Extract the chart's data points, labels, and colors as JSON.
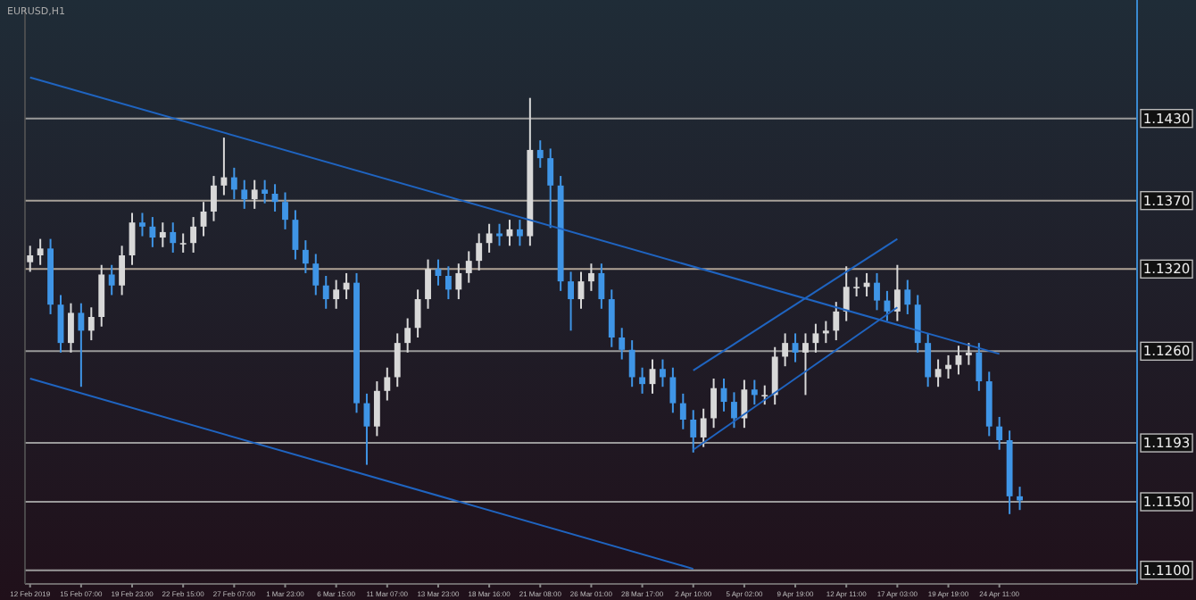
{
  "chart_data": {
    "type": "candlestick",
    "title": "EURUSD,H1",
    "categories": [
      "12 Feb 2019",
      null,
      null,
      null,
      null,
      "15 Feb 07:00",
      null,
      null,
      null,
      null,
      "19 Feb 23:00",
      null,
      null,
      null,
      null,
      "22 Feb 15:00",
      null,
      null,
      null,
      null,
      "27 Feb 07:00",
      null,
      null,
      null,
      null,
      "1 Mar 23:00",
      null,
      null,
      null,
      null,
      "6 Mar 15:00",
      null,
      null,
      null,
      null,
      "11 Mar 07:00",
      null,
      null,
      null,
      null,
      "13 Mar 23:00",
      null,
      null,
      null,
      null,
      "18 Mar 16:00",
      null,
      null,
      null,
      null,
      "21 Mar 08:00",
      null,
      null,
      null,
      null,
      "26 Mar 01:00",
      null,
      null,
      null,
      null,
      "28 Mar 17:00",
      null,
      null,
      null,
      null,
      "2 Apr 10:00",
      null,
      null,
      null,
      null,
      "5 Apr 02:00",
      null,
      null,
      null,
      null,
      "9 Apr 19:00",
      null,
      null,
      null,
      null,
      "12 Apr 11:00",
      null,
      null,
      null,
      null,
      "17 Apr 03:00",
      null,
      null,
      null,
      null,
      "19 Apr 19:00",
      null,
      null,
      null,
      null,
      "24 Apr 11:00",
      null,
      null,
      null,
      null,
      null,
      null,
      null,
      null,
      null,
      null,
      null,
      null,
      null
    ],
    "ohlc": [
      [
        1.1325,
        1.1337,
        1.1318,
        1.133
      ],
      [
        1.133,
        1.1342,
        1.1323,
        1.1335
      ],
      [
        1.1335,
        1.1342,
        1.1287,
        1.1294
      ],
      [
        1.1294,
        1.1301,
        1.1259,
        1.1266
      ],
      [
        1.1266,
        1.1295,
        1.1259,
        1.1288
      ],
      [
        1.1288,
        1.1295,
        1.1234,
        1.1275
      ],
      [
        1.1275,
        1.1292,
        1.1268,
        1.1285
      ],
      [
        1.1285,
        1.1323,
        1.1278,
        1.1316
      ],
      [
        1.1316,
        1.1323,
        1.1301,
        1.1308
      ],
      [
        1.1308,
        1.1337,
        1.1301,
        1.133
      ],
      [
        1.133,
        1.1361,
        1.1323,
        1.1354
      ],
      [
        1.1354,
        1.1361,
        1.1344,
        1.1351
      ],
      [
        1.1351,
        1.1358,
        1.1336,
        1.1343
      ],
      [
        1.1343,
        1.1354,
        1.1336,
        1.1347
      ],
      [
        1.1347,
        1.1354,
        1.1332,
        1.1339
      ],
      [
        1.1339,
        1.1346,
        1.1332,
        1.1339
      ],
      [
        1.1339,
        1.1358,
        1.1332,
        1.1351
      ],
      [
        1.1351,
        1.1369,
        1.1344,
        1.1362
      ],
      [
        1.1362,
        1.1388,
        1.1355,
        1.1381
      ],
      [
        1.1381,
        1.1416,
        1.1374,
        1.1387
      ],
      [
        1.1387,
        1.1394,
        1.1371,
        1.1378
      ],
      [
        1.1378,
        1.1385,
        1.1364,
        1.1371
      ],
      [
        1.1371,
        1.1385,
        1.1364,
        1.1378
      ],
      [
        1.1378,
        1.1385,
        1.1368,
        1.1375
      ],
      [
        1.1375,
        1.1382,
        1.1362,
        1.1369
      ],
      [
        1.1369,
        1.1376,
        1.1349,
        1.1356
      ],
      [
        1.1356,
        1.1363,
        1.1327,
        1.1334
      ],
      [
        1.1334,
        1.1341,
        1.1317,
        1.1324
      ],
      [
        1.1324,
        1.1331,
        1.1301,
        1.1308
      ],
      [
        1.1308,
        1.1315,
        1.1291,
        1.1298
      ],
      [
        1.1298,
        1.1312,
        1.1291,
        1.1305
      ],
      [
        1.1305,
        1.1317,
        1.1298,
        1.131
      ],
      [
        1.131,
        1.1317,
        1.1215,
        1.1222
      ],
      [
        1.1222,
        1.1229,
        1.1177,
        1.1205
      ],
      [
        1.1205,
        1.1238,
        1.1198,
        1.1231
      ],
      [
        1.1231,
        1.1248,
        1.1224,
        1.1241
      ],
      [
        1.1241,
        1.1273,
        1.1234,
        1.1266
      ],
      [
        1.1266,
        1.1284,
        1.1259,
        1.1277
      ],
      [
        1.1277,
        1.1305,
        1.127,
        1.1298
      ],
      [
        1.1298,
        1.1327,
        1.1291,
        1.132
      ],
      [
        1.132,
        1.1327,
        1.1308,
        1.1315
      ],
      [
        1.1315,
        1.1322,
        1.1298,
        1.1305
      ],
      [
        1.1305,
        1.1324,
        1.1298,
        1.1317
      ],
      [
        1.1317,
        1.1333,
        1.131,
        1.1326
      ],
      [
        1.1326,
        1.1346,
        1.1319,
        1.1339
      ],
      [
        1.1339,
        1.1353,
        1.1332,
        1.1346
      ],
      [
        1.1346,
        1.1353,
        1.1337,
        1.1344
      ],
      [
        1.1344,
        1.1356,
        1.1337,
        1.1349
      ],
      [
        1.1349,
        1.1356,
        1.1337,
        1.1344
      ],
      [
        1.1344,
        1.1445,
        1.1337,
        1.1407
      ],
      [
        1.1407,
        1.1414,
        1.1394,
        1.1401
      ],
      [
        1.1401,
        1.1408,
        1.135,
        1.1381
      ],
      [
        1.1381,
        1.1388,
        1.1304,
        1.1311
      ],
      [
        1.1311,
        1.1318,
        1.1275,
        1.1298
      ],
      [
        1.1298,
        1.1318,
        1.1291,
        1.1311
      ],
      [
        1.1311,
        1.1324,
        1.1304,
        1.1317
      ],
      [
        1.1317,
        1.1324,
        1.1291,
        1.1298
      ],
      [
        1.1298,
        1.1305,
        1.1263,
        1.127
      ],
      [
        1.127,
        1.1277,
        1.1254,
        1.1261
      ],
      [
        1.1261,
        1.1268,
        1.1234,
        1.1241
      ],
      [
        1.1241,
        1.1248,
        1.1229,
        1.1236
      ],
      [
        1.1236,
        1.1254,
        1.1229,
        1.1247
      ],
      [
        1.1247,
        1.1254,
        1.1234,
        1.1241
      ],
      [
        1.1241,
        1.1248,
        1.1215,
        1.1222
      ],
      [
        1.1222,
        1.1229,
        1.1203,
        1.121
      ],
      [
        1.121,
        1.1217,
        1.1186,
        1.1197
      ],
      [
        1.1197,
        1.1218,
        1.119,
        1.1211
      ],
      [
        1.1211,
        1.124,
        1.1204,
        1.1233
      ],
      [
        1.1233,
        1.124,
        1.1216,
        1.1223
      ],
      [
        1.1223,
        1.123,
        1.1204,
        1.1211
      ],
      [
        1.1211,
        1.1239,
        1.1204,
        1.1232
      ],
      [
        1.1232,
        1.1239,
        1.1221,
        1.1228
      ],
      [
        1.1228,
        1.1235,
        1.1221,
        1.1228
      ],
      [
        1.1228,
        1.1263,
        1.1221,
        1.1256
      ],
      [
        1.1256,
        1.1273,
        1.1249,
        1.1266
      ],
      [
        1.1266,
        1.1273,
        1.1252,
        1.1259
      ],
      [
        1.1259,
        1.1273,
        1.1228,
        1.1266
      ],
      [
        1.1266,
        1.128,
        1.1259,
        1.1273
      ],
      [
        1.1273,
        1.1282,
        1.1266,
        1.1275
      ],
      [
        1.1275,
        1.1296,
        1.1268,
        1.1289
      ],
      [
        1.1289,
        1.1322,
        1.1282,
        1.1307
      ],
      [
        1.1307,
        1.1314,
        1.13,
        1.1307
      ],
      [
        1.1307,
        1.1317,
        1.13,
        1.131
      ],
      [
        1.131,
        1.1317,
        1.129,
        1.1297
      ],
      [
        1.1297,
        1.1304,
        1.1282,
        1.1289
      ],
      [
        1.1289,
        1.1323,
        1.1282,
        1.1305
      ],
      [
        1.1305,
        1.1312,
        1.1287,
        1.1294
      ],
      [
        1.1294,
        1.1301,
        1.1259,
        1.1266
      ],
      [
        1.1266,
        1.1273,
        1.1234,
        1.1241
      ],
      [
        1.1241,
        1.1254,
        1.1234,
        1.1247
      ],
      [
        1.1247,
        1.1257,
        1.124,
        1.125
      ],
      [
        1.125,
        1.1264,
        1.1243,
        1.1257
      ],
      [
        1.1257,
        1.1266,
        1.125,
        1.1259
      ],
      [
        1.1259,
        1.1266,
        1.1231,
        1.1238
      ],
      [
        1.1238,
        1.1245,
        1.1198,
        1.1205
      ],
      [
        1.1205,
        1.1212,
        1.1188,
        1.1195
      ],
      [
        1.1195,
        1.1202,
        1.1141,
        1.1154
      ],
      [
        1.1154,
        1.1161,
        1.1144,
        1.1151
      ],
      null,
      null,
      null,
      null,
      null,
      null,
      null,
      null,
      null,
      null,
      null
    ],
    "colors": [
      "#d8d8d8",
      "#d8d8d8",
      "#3f95e6",
      "#3f95e6",
      "#d8d8d8",
      "#3f95e6",
      "#d8d8d8",
      "#d8d8d8",
      "#3f95e6",
      "#d8d8d8",
      "#d8d8d8",
      "#3f95e6",
      "#3f95e6",
      "#d8d8d8",
      "#3f95e6",
      "#d8d8d8",
      "#d8d8d8",
      "#d8d8d8",
      "#d8d8d8",
      "#d8d8d8",
      "#3f95e6",
      "#3f95e6",
      "#d8d8d8",
      "#3f95e6",
      "#3f95e6",
      "#3f95e6",
      "#3f95e6",
      "#3f95e6",
      "#3f95e6",
      "#3f95e6",
      "#d8d8d8",
      "#d8d8d8",
      "#3f95e6",
      "#3f95e6",
      "#d8d8d8",
      "#d8d8d8",
      "#d8d8d8",
      "#d8d8d8",
      "#d8d8d8",
      "#d8d8d8",
      "#3f95e6",
      "#3f95e6",
      "#d8d8d8",
      "#d8d8d8",
      "#d8d8d8",
      "#d8d8d8",
      "#3f95e6",
      "#d8d8d8",
      "#3f95e6",
      "#d8d8d8",
      "#3f95e6",
      "#3f95e6",
      "#3f95e6",
      "#3f95e6",
      "#d8d8d8",
      "#d8d8d8",
      "#3f95e6",
      "#3f95e6",
      "#3f95e6",
      "#3f95e6",
      "#3f95e6",
      "#d8d8d8",
      "#3f95e6",
      "#3f95e6",
      "#3f95e6",
      "#3f95e6",
      "#d8d8d8",
      "#d8d8d8",
      "#3f95e6",
      "#3f95e6",
      "#d8d8d8",
      "#3f95e6",
      "#d8d8d8",
      "#d8d8d8",
      "#d8d8d8",
      "#3f95e6",
      "#d8d8d8",
      "#d8d8d8",
      "#d8d8d8",
      "#d8d8d8",
      "#d8d8d8",
      "#d8d8d8",
      "#d8d8d8",
      "#3f95e6",
      "#3f95e6",
      "#d8d8d8",
      "#3f95e6",
      "#3f95e6",
      "#3f95e6",
      "#d8d8d8",
      "#d8d8d8",
      "#d8d8d8",
      "#d8d8d8",
      "#3f95e6",
      "#3f95e6",
      "#3f95e6",
      "#3f95e6",
      "#3f95e6",
      null,
      null,
      null,
      null,
      null,
      null,
      null,
      null,
      null,
      null,
      null
    ],
    "series": [
      {
        "type": "line",
        "color": "#1f64c0",
        "x": [
          "12 Feb 2019",
          "24 Apr 11:00"
        ],
        "values": [
          1.146,
          1.1258
        ]
      },
      {
        "type": "line",
        "color": "#1f64c0",
        "x": [
          "12 Feb 2019",
          "2 Apr 10:00"
        ],
        "values": [
          1.124,
          1.1101
        ]
      },
      {
        "type": "line",
        "color": "#1f64c0",
        "x": [
          "2 Apr 10:00",
          "17 Apr 03:00"
        ],
        "values": [
          1.1246,
          1.1342
        ]
      },
      {
        "type": "line",
        "color": "#1f64c0",
        "x": [
          "2 Apr 10:00",
          "17 Apr 03:00"
        ],
        "values": [
          1.1188,
          1.1292
        ]
      }
    ],
    "ylim": [
      1.109,
      1.151
    ],
    "yticks": [
      {
        "value": 1.143,
        "label": "1.1430"
      },
      {
        "value": 1.137,
        "label": "1.1370"
      },
      {
        "value": 1.132,
        "label": "1.1320"
      },
      {
        "value": 1.126,
        "label": "1.1260"
      },
      {
        "value": 1.1193,
        "label": "1.1193"
      },
      {
        "value": 1.115,
        "label": "1.1150"
      },
      {
        "value": 1.11,
        "label": "1.1100"
      }
    ],
    "ref_lines": [
      {
        "axis": "y",
        "value": 1.143,
        "color": "#9a9a9a"
      },
      {
        "axis": "y",
        "value": 1.137,
        "color": "#a8a29a"
      },
      {
        "axis": "y",
        "value": 1.132,
        "color": "#b0a396"
      },
      {
        "axis": "y",
        "value": 1.126,
        "color": "#9a9a9a"
      },
      {
        "axis": "y",
        "value": 1.1193,
        "color": "#9a9a9a"
      },
      {
        "axis": "y",
        "value": 1.115,
        "color": "#9a9a9a"
      },
      {
        "axis": "y",
        "value": 1.11,
        "color": "#9a9a9a"
      }
    ],
    "grid": false
  }
}
